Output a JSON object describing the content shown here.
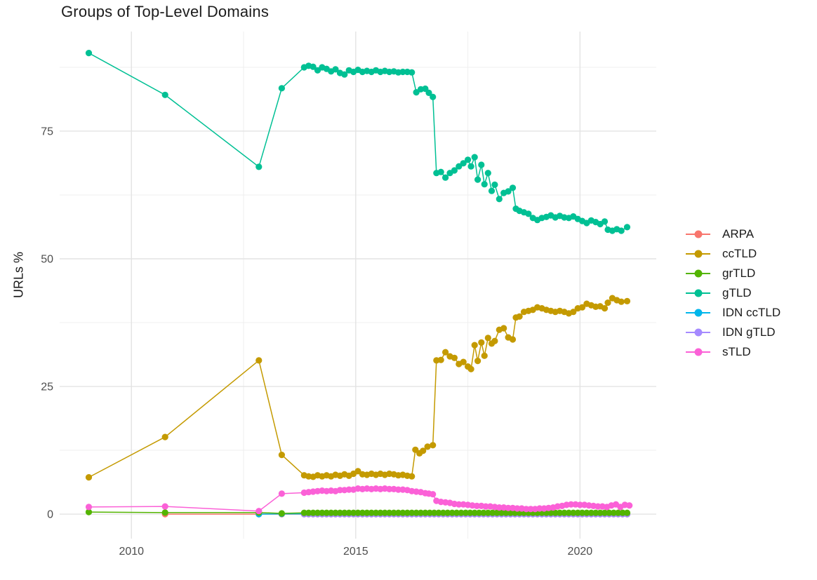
{
  "chart_data": {
    "type": "line",
    "title": "Groups of Top-Level Domains",
    "xlabel": "",
    "ylabel": "URLs %",
    "legend_position": "right",
    "grid": true,
    "xlim": [
      2008.4,
      2021.7
    ],
    "ylim": [
      -4.8,
      94.5
    ],
    "x_ticks": [
      2010,
      2015,
      2020
    ],
    "x_minor": [
      2012.5,
      2017.5
    ],
    "y_ticks": [
      0,
      25,
      50,
      75
    ],
    "y_minor": [
      12.5,
      37.5,
      62.5,
      87.5
    ],
    "tick_color": "#4d4d4d",
    "grid_major_color": "#e3e3e3",
    "grid_minor_color": "#efefef",
    "series": [
      {
        "name": "ARPA",
        "color": "#F8766D",
        "z": 0,
        "points": [
          [
            2010.75,
            0.0
          ],
          [
            2012.84,
            0.0
          ],
          [
            2013.35,
            0.0
          ]
        ],
        "run": {
          "from": 2013.85,
          "to": 2021.05,
          "step": 0.1,
          "value": 0.0
        }
      },
      {
        "name": "ccTLD",
        "color": "#C49A00",
        "z": 4,
        "points": [
          [
            2009.05,
            7.2
          ],
          [
            2010.75,
            15.1
          ],
          [
            2012.84,
            30.1
          ],
          [
            2013.35,
            11.6
          ],
          [
            2013.85,
            7.6
          ],
          [
            2013.95,
            7.4
          ],
          [
            2014.05,
            7.3
          ],
          [
            2014.15,
            7.6
          ],
          [
            2014.25,
            7.4
          ],
          [
            2014.35,
            7.6
          ],
          [
            2014.45,
            7.4
          ],
          [
            2014.55,
            7.7
          ],
          [
            2014.65,
            7.5
          ],
          [
            2014.75,
            7.8
          ],
          [
            2014.85,
            7.5
          ],
          [
            2014.95,
            7.9
          ],
          [
            2015.05,
            8.4
          ],
          [
            2015.15,
            7.8
          ],
          [
            2015.25,
            7.7
          ],
          [
            2015.35,
            7.9
          ],
          [
            2015.45,
            7.7
          ],
          [
            2015.55,
            7.9
          ],
          [
            2015.65,
            7.7
          ],
          [
            2015.75,
            7.9
          ],
          [
            2015.85,
            7.8
          ],
          [
            2015.95,
            7.6
          ],
          [
            2016.05,
            7.7
          ],
          [
            2016.15,
            7.5
          ],
          [
            2016.25,
            7.4
          ],
          [
            2016.33,
            12.6
          ],
          [
            2016.42,
            11.9
          ],
          [
            2016.5,
            12.4
          ],
          [
            2016.6,
            13.2
          ],
          [
            2016.72,
            13.5
          ],
          [
            2016.8,
            30.1
          ],
          [
            2016.9,
            30.2
          ],
          [
            2017.0,
            31.7
          ],
          [
            2017.1,
            30.9
          ],
          [
            2017.2,
            30.6
          ],
          [
            2017.3,
            29.4
          ],
          [
            2017.4,
            29.8
          ],
          [
            2017.5,
            28.9
          ],
          [
            2017.57,
            28.4
          ],
          [
            2017.65,
            33.1
          ],
          [
            2017.72,
            30.0
          ],
          [
            2017.8,
            33.6
          ],
          [
            2017.87,
            31.0
          ],
          [
            2017.95,
            34.5
          ],
          [
            2018.03,
            33.4
          ],
          [
            2018.1,
            33.9
          ],
          [
            2018.2,
            36.1
          ],
          [
            2018.3,
            36.4
          ],
          [
            2018.4,
            34.6
          ],
          [
            2018.5,
            34.2
          ],
          [
            2018.57,
            38.5
          ],
          [
            2018.65,
            38.7
          ],
          [
            2018.75,
            39.6
          ],
          [
            2018.85,
            39.8
          ],
          [
            2018.95,
            40.0
          ],
          [
            2019.05,
            40.5
          ],
          [
            2019.15,
            40.3
          ],
          [
            2019.25,
            40.0
          ],
          [
            2019.35,
            39.8
          ],
          [
            2019.45,
            39.6
          ],
          [
            2019.55,
            39.8
          ],
          [
            2019.65,
            39.6
          ],
          [
            2019.75,
            39.3
          ],
          [
            2019.85,
            39.6
          ],
          [
            2019.95,
            40.3
          ],
          [
            2020.05,
            40.5
          ],
          [
            2020.15,
            41.2
          ],
          [
            2020.25,
            40.9
          ],
          [
            2020.35,
            40.6
          ],
          [
            2020.45,
            40.7
          ],
          [
            2020.55,
            40.3
          ],
          [
            2020.62,
            41.4
          ],
          [
            2020.72,
            42.3
          ],
          [
            2020.82,
            41.9
          ],
          [
            2020.92,
            41.6
          ],
          [
            2021.05,
            41.7
          ]
        ]
      },
      {
        "name": "grTLD",
        "color": "#53B400",
        "z": 3,
        "points": [
          [
            2009.05,
            0.4
          ],
          [
            2010.75,
            0.3
          ],
          [
            2012.84,
            0.3
          ],
          [
            2013.35,
            0.15
          ]
        ],
        "run": {
          "from": 2013.85,
          "to": 2021.05,
          "step": 0.1,
          "value": 0.25
        }
      },
      {
        "name": "gTLD",
        "color": "#00C094",
        "z": 5,
        "points": [
          [
            2009.05,
            90.3
          ],
          [
            2010.75,
            82.1
          ],
          [
            2012.84,
            68.0
          ],
          [
            2013.35,
            83.4
          ],
          [
            2013.85,
            87.5
          ],
          [
            2013.95,
            87.8
          ],
          [
            2014.05,
            87.6
          ],
          [
            2014.15,
            86.9
          ],
          [
            2014.25,
            87.5
          ],
          [
            2014.35,
            87.2
          ],
          [
            2014.45,
            86.7
          ],
          [
            2014.55,
            87.1
          ],
          [
            2014.65,
            86.4
          ],
          [
            2014.75,
            86.1
          ],
          [
            2014.85,
            86.9
          ],
          [
            2014.95,
            86.6
          ],
          [
            2015.05,
            87.0
          ],
          [
            2015.15,
            86.6
          ],
          [
            2015.25,
            86.8
          ],
          [
            2015.35,
            86.6
          ],
          [
            2015.45,
            86.9
          ],
          [
            2015.55,
            86.6
          ],
          [
            2015.65,
            86.8
          ],
          [
            2015.75,
            86.6
          ],
          [
            2015.85,
            86.7
          ],
          [
            2015.95,
            86.5
          ],
          [
            2016.05,
            86.6
          ],
          [
            2016.15,
            86.6
          ],
          [
            2016.25,
            86.5
          ],
          [
            2016.35,
            82.6
          ],
          [
            2016.45,
            83.2
          ],
          [
            2016.55,
            83.3
          ],
          [
            2016.63,
            82.5
          ],
          [
            2016.72,
            81.7
          ],
          [
            2016.8,
            66.8
          ],
          [
            2016.9,
            67.0
          ],
          [
            2017.0,
            65.9
          ],
          [
            2017.1,
            66.8
          ],
          [
            2017.2,
            67.3
          ],
          [
            2017.3,
            68.1
          ],
          [
            2017.4,
            68.7
          ],
          [
            2017.5,
            69.4
          ],
          [
            2017.57,
            68.1
          ],
          [
            2017.65,
            69.9
          ],
          [
            2017.72,
            65.5
          ],
          [
            2017.8,
            68.4
          ],
          [
            2017.87,
            64.6
          ],
          [
            2017.95,
            66.8
          ],
          [
            2018.03,
            63.3
          ],
          [
            2018.1,
            64.5
          ],
          [
            2018.2,
            61.7
          ],
          [
            2018.3,
            62.9
          ],
          [
            2018.4,
            63.2
          ],
          [
            2018.5,
            63.9
          ],
          [
            2018.57,
            59.8
          ],
          [
            2018.65,
            59.4
          ],
          [
            2018.75,
            59.1
          ],
          [
            2018.85,
            58.8
          ],
          [
            2018.95,
            58.0
          ],
          [
            2019.05,
            57.6
          ],
          [
            2019.15,
            58.0
          ],
          [
            2019.25,
            58.2
          ],
          [
            2019.35,
            58.5
          ],
          [
            2019.45,
            58.1
          ],
          [
            2019.55,
            58.4
          ],
          [
            2019.65,
            58.1
          ],
          [
            2019.75,
            58.0
          ],
          [
            2019.85,
            58.3
          ],
          [
            2019.95,
            57.8
          ],
          [
            2020.05,
            57.4
          ],
          [
            2020.15,
            57.0
          ],
          [
            2020.25,
            57.5
          ],
          [
            2020.35,
            57.2
          ],
          [
            2020.45,
            56.8
          ],
          [
            2020.55,
            57.3
          ],
          [
            2020.62,
            55.7
          ],
          [
            2020.72,
            55.5
          ],
          [
            2020.82,
            55.8
          ],
          [
            2020.92,
            55.5
          ],
          [
            2021.05,
            56.2
          ]
        ]
      },
      {
        "name": "IDN ccTLD",
        "color": "#00B6EB",
        "z": 1,
        "points": [
          [
            2012.84,
            0.0
          ],
          [
            2013.35,
            0.05
          ]
        ],
        "run": {
          "from": 2013.85,
          "to": 2021.05,
          "step": 0.1,
          "value": 0.05
        }
      },
      {
        "name": "IDN gTLD",
        "color": "#A58AFF",
        "z": 2,
        "points": [],
        "run": {
          "from": 2013.85,
          "to": 2021.05,
          "step": 0.1,
          "value": 0.0
        }
      },
      {
        "name": "sTLD",
        "color": "#FB61D7",
        "z": 6,
        "points": [
          [
            2009.05,
            1.4
          ],
          [
            2010.75,
            1.5
          ],
          [
            2012.84,
            0.6
          ],
          [
            2013.35,
            4.0
          ],
          [
            2013.85,
            4.2
          ],
          [
            2013.95,
            4.3
          ],
          [
            2014.05,
            4.4
          ],
          [
            2014.15,
            4.5
          ],
          [
            2014.25,
            4.6
          ],
          [
            2014.35,
            4.5
          ],
          [
            2014.45,
            4.6
          ],
          [
            2014.55,
            4.5
          ],
          [
            2014.65,
            4.7
          ],
          [
            2014.75,
            4.7
          ],
          [
            2014.85,
            4.8
          ],
          [
            2014.95,
            4.8
          ],
          [
            2015.05,
            5.0
          ],
          [
            2015.15,
            4.9
          ],
          [
            2015.25,
            5.0
          ],
          [
            2015.35,
            4.9
          ],
          [
            2015.45,
            5.0
          ],
          [
            2015.55,
            4.9
          ],
          [
            2015.65,
            5.0
          ],
          [
            2015.75,
            4.9
          ],
          [
            2015.85,
            4.9
          ],
          [
            2015.95,
            4.8
          ],
          [
            2016.05,
            4.8
          ],
          [
            2016.15,
            4.7
          ],
          [
            2016.25,
            4.5
          ],
          [
            2016.35,
            4.4
          ],
          [
            2016.45,
            4.3
          ],
          [
            2016.55,
            4.1
          ],
          [
            2016.63,
            4.0
          ],
          [
            2016.72,
            3.9
          ],
          [
            2016.8,
            2.6
          ],
          [
            2016.9,
            2.4
          ],
          [
            2017.0,
            2.3
          ],
          [
            2017.1,
            2.2
          ],
          [
            2017.2,
            2.0
          ],
          [
            2017.3,
            1.9
          ],
          [
            2017.4,
            1.9
          ],
          [
            2017.5,
            1.8
          ],
          [
            2017.6,
            1.7
          ],
          [
            2017.7,
            1.6
          ],
          [
            2017.8,
            1.6
          ],
          [
            2017.9,
            1.5
          ],
          [
            2018.0,
            1.5
          ],
          [
            2018.1,
            1.4
          ],
          [
            2018.2,
            1.3
          ],
          [
            2018.3,
            1.3
          ],
          [
            2018.4,
            1.2
          ],
          [
            2018.5,
            1.2
          ],
          [
            2018.6,
            1.1
          ],
          [
            2018.7,
            1.1
          ],
          [
            2018.8,
            1.0
          ],
          [
            2018.9,
            1.0
          ],
          [
            2019.0,
            1.0
          ],
          [
            2019.1,
            1.1
          ],
          [
            2019.2,
            1.1
          ],
          [
            2019.3,
            1.2
          ],
          [
            2019.4,
            1.3
          ],
          [
            2019.5,
            1.5
          ],
          [
            2019.6,
            1.6
          ],
          [
            2019.7,
            1.8
          ],
          [
            2019.8,
            1.9
          ],
          [
            2019.9,
            1.9
          ],
          [
            2020.0,
            1.8
          ],
          [
            2020.1,
            1.8
          ],
          [
            2020.2,
            1.7
          ],
          [
            2020.3,
            1.6
          ],
          [
            2020.4,
            1.5
          ],
          [
            2020.5,
            1.5
          ],
          [
            2020.6,
            1.4
          ],
          [
            2020.7,
            1.7
          ],
          [
            2020.8,
            1.9
          ],
          [
            2020.9,
            1.4
          ],
          [
            2021.0,
            1.8
          ],
          [
            2021.1,
            1.7
          ]
        ]
      }
    ]
  }
}
